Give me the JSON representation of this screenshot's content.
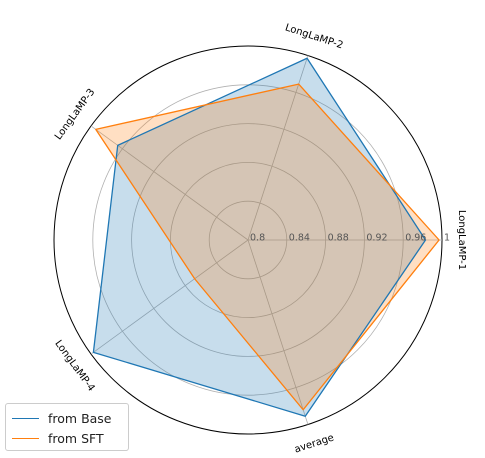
{
  "chart_data": {
    "type": "radar",
    "axes": [
      "LongLaMP-1",
      "LongLaMP-2",
      "LongLaMP-3",
      "LongLaMP-4",
      "average"
    ],
    "radial_ticks": [
      "0.8",
      "0.84",
      "0.88",
      "0.92",
      "0.96",
      "1"
    ],
    "rlim": [
      0.8,
      1.0
    ],
    "grid": true,
    "legend_position": "lower-left",
    "series": [
      {
        "name": "from Base",
        "color": "#1f77b4",
        "fill": "#1f77b4",
        "values": [
          0.983,
          0.997,
          0.966,
          0.997,
          0.991
        ]
      },
      {
        "name": "from SFT",
        "color": "#ff7f0e",
        "fill": "#ff7f0e",
        "values": [
          0.997,
          0.969,
          0.994,
          0.868,
          0.984
        ]
      }
    ]
  }
}
